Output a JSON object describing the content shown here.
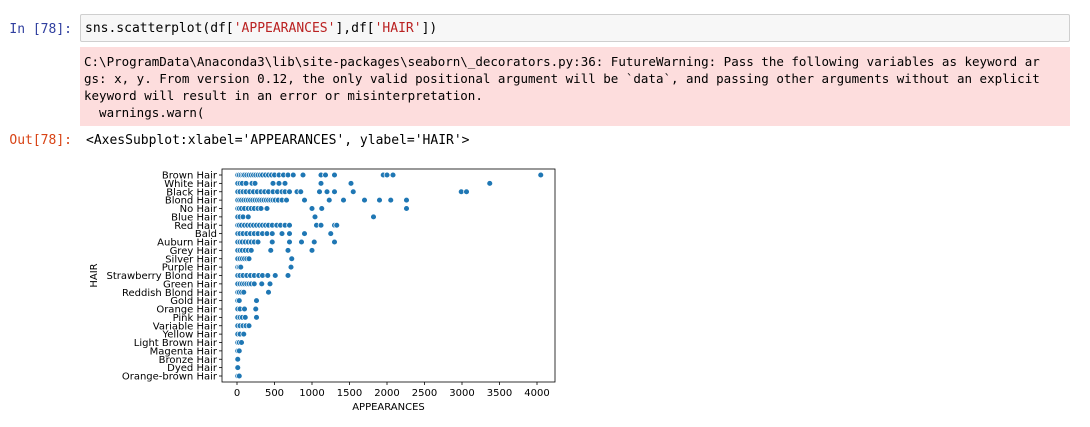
{
  "cell_in": {
    "prompt": "In [78]:",
    "code_prefix": "sns.scatterplot(df[",
    "code_str1": "'APPEARANCES'",
    "code_mid": "],df[",
    "code_str2": "'HAIR'",
    "code_suffix": "])"
  },
  "stderr": {
    "lines": [
      "C:\\ProgramData\\Anaconda3\\lib\\site-packages\\seaborn\\_decorators.py:36: FutureWarning: Pass the following variables as keyword ar",
      "gs: x, y. From version 0.12, the only valid positional argument will be `data`, and passing other arguments without an explicit",
      "keyword will result in an error or misinterpretation.",
      "  warnings.warn("
    ]
  },
  "cell_out": {
    "prompt": "Out[78]:",
    "text": "<AxesSubplot:xlabel='APPEARANCES', ylabel='HAIR'>"
  },
  "chart_data": {
    "type": "scatter",
    "xlabel": "APPEARANCES",
    "ylabel": "HAIR",
    "xticks": [
      0,
      500,
      1000,
      1500,
      2000,
      2500,
      3000,
      3500,
      4000
    ],
    "xlim": [
      -200,
      4240
    ],
    "marker_color": "#1f77b4",
    "categories": [
      "Brown Hair",
      "White Hair",
      "Black Hair",
      "Blond Hair",
      "No Hair",
      "Blue Hair",
      "Red Hair",
      "Bald",
      "Auburn Hair",
      "Grey Hair",
      "Silver Hair",
      "Purple Hair",
      "Strawberry Blond Hair",
      "Green Hair",
      "Reddish Blond Hair",
      "Gold Hair",
      "Orange Hair",
      "Pink Hair",
      "Variable Hair",
      "Yellow Hair",
      "Light Brown Hair",
      "Magenta Hair",
      "Bronze Hair",
      "Dyed Hair",
      "Orange-brown Hair"
    ],
    "points": [
      {
        "category": "Brown Hair",
        "x": [
          10,
          30,
          55,
          80,
          100,
          130,
          160,
          190,
          220,
          250,
          280,
          310,
          340,
          380,
          420,
          460,
          500,
          560,
          620,
          680,
          750,
          880,
          1120,
          1180,
          1300,
          1950,
          2000,
          2080,
          4050
        ]
      },
      {
        "category": "White Hair",
        "x": [
          10,
          40,
          70,
          120,
          200,
          240,
          480,
          560,
          640,
          1120,
          1520,
          3370
        ]
      },
      {
        "category": "Black Hair",
        "x": [
          10,
          40,
          80,
          120,
          170,
          220,
          270,
          320,
          370,
          420,
          480,
          540,
          600,
          640,
          700,
          800,
          850,
          1100,
          1200,
          1300,
          1550,
          2990,
          3060
        ]
      },
      {
        "category": "Blond Hair",
        "x": [
          10,
          35,
          60,
          90,
          120,
          150,
          180,
          210,
          240,
          270,
          300,
          330,
          360,
          390,
          420,
          450,
          480,
          510,
          550,
          600,
          660,
          900,
          1230,
          1420,
          1700,
          1900,
          2050,
          2260
        ]
      },
      {
        "category": "No Hair",
        "x": [
          10,
          30,
          60,
          100,
          150,
          190,
          230,
          280,
          320,
          400,
          1000,
          1130,
          2260
        ]
      },
      {
        "category": "Blue Hair",
        "x": [
          10,
          40,
          80,
          150,
          1040,
          1820
        ]
      },
      {
        "category": "Red Hair",
        "x": [
          10,
          30,
          60,
          100,
          140,
          180,
          220,
          260,
          300,
          340,
          380,
          420,
          470,
          530,
          580,
          640,
          700,
          1060,
          1120,
          1300,
          1330
        ]
      },
      {
        "category": "Bald",
        "x": [
          10,
          40,
          80,
          130,
          180,
          230,
          280,
          340,
          400,
          470,
          600,
          700,
          900,
          1250
        ]
      },
      {
        "category": "Auburn Hair",
        "x": [
          10,
          40,
          70,
          110,
          150,
          190,
          230,
          280,
          470,
          700,
          860,
          1030,
          1300
        ]
      },
      {
        "category": "Grey Hair",
        "x": [
          10,
          40,
          70,
          110,
          150,
          190,
          450,
          680,
          1000
        ]
      },
      {
        "category": "Silver Hair",
        "x": [
          10,
          40,
          70,
          100,
          130,
          160,
          730
        ]
      },
      {
        "category": "Purple Hair",
        "x": [
          10,
          30,
          50,
          720
        ]
      },
      {
        "category": "Strawberry Blond Hair",
        "x": [
          10,
          40,
          80,
          130,
          180,
          230,
          290,
          340,
          410,
          510,
          680
        ]
      },
      {
        "category": "Green Hair",
        "x": [
          10,
          40,
          70,
          100,
          130,
          160,
          190,
          230,
          330,
          440
        ]
      },
      {
        "category": "Reddish Blond Hair",
        "x": [
          10,
          30,
          60,
          90,
          420
        ]
      },
      {
        "category": "Gold Hair",
        "x": [
          10,
          30,
          260
        ]
      },
      {
        "category": "Orange Hair",
        "x": [
          10,
          40,
          100,
          250
        ]
      },
      {
        "category": "Pink Hair",
        "x": [
          10,
          40,
          70,
          110,
          260
        ]
      },
      {
        "category": "Variable Hair",
        "x": [
          10,
          40,
          80,
          120,
          160
        ]
      },
      {
        "category": "Yellow Hair",
        "x": [
          10,
          40,
          90
        ]
      },
      {
        "category": "Light Brown Hair",
        "x": [
          10,
          30,
          60
        ]
      },
      {
        "category": "Magenta Hair",
        "x": [
          10,
          30
        ]
      },
      {
        "category": "Bronze Hair",
        "x": [
          10
        ]
      },
      {
        "category": "Dyed Hair",
        "x": [
          10
        ]
      },
      {
        "category": "Orange-brown Hair",
        "x": [
          10,
          30
        ]
      }
    ]
  }
}
